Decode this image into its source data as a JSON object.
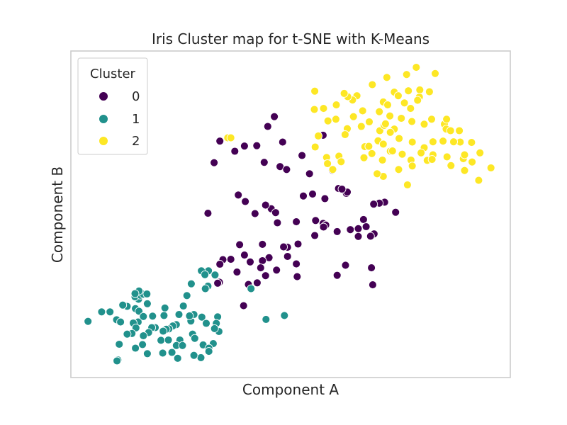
{
  "chart_data": {
    "type": "scatter",
    "title": "Iris Cluster map for t-SNE with K-Means",
    "xlabel": "Component A",
    "ylabel": "Component B",
    "xlim": [
      0,
      100
    ],
    "ylim": [
      0,
      100
    ],
    "grid": false,
    "ticks_visible": false,
    "legend": {
      "title": "Cluster",
      "placement": "top-left",
      "entries": [
        "0",
        "1",
        "2"
      ]
    },
    "series": [
      {
        "name": "0",
        "color": "#440154",
        "points": [
          [
            46.3,
            79.9
          ],
          [
            44.8,
            76.9
          ],
          [
            33.9,
            72.4
          ],
          [
            48.2,
            72.1
          ],
          [
            57.4,
            74.2
          ],
          [
            42.3,
            71.0
          ],
          [
            39.5,
            70.9
          ],
          [
            37.3,
            69.3
          ],
          [
            52.6,
            68.0
          ],
          [
            44.0,
            65.9
          ],
          [
            32.6,
            65.8
          ],
          [
            47.6,
            64.6
          ],
          [
            49.1,
            63.7
          ],
          [
            54.3,
            62.4
          ],
          [
            59.5,
            63.5
          ],
          [
            60.9,
            57.9
          ],
          [
            62.7,
            56.4
          ],
          [
            71.4,
            53.7
          ],
          [
            70.2,
            53.4
          ],
          [
            73.9,
            50.6
          ],
          [
            62.9,
            56.8
          ],
          [
            61.7,
            57.7
          ],
          [
            55.0,
            56.2
          ],
          [
            52.9,
            55.6
          ],
          [
            57.8,
            54.8
          ],
          [
            68.9,
            53.1
          ],
          [
            45.6,
            51.7
          ],
          [
            38.1,
            55.9
          ],
          [
            39.7,
            53.9
          ],
          [
            44.3,
            52.8
          ],
          [
            46.6,
            50.5
          ],
          [
            41.9,
            50.2
          ],
          [
            31.2,
            50.3
          ],
          [
            47.0,
            47.4
          ],
          [
            51.3,
            47.7
          ],
          [
            55.7,
            48.1
          ],
          [
            57.4,
            47.2
          ],
          [
            58.0,
            46.7
          ],
          [
            57.5,
            46.1
          ],
          [
            65.4,
            45.6
          ],
          [
            66.6,
            48.4
          ],
          [
            67.2,
            46.2
          ],
          [
            69.0,
            44.0
          ],
          [
            65.4,
            43.2
          ],
          [
            68.2,
            43.3
          ],
          [
            63.6,
            45.3
          ],
          [
            60.6,
            44.7
          ],
          [
            55.5,
            43.5
          ],
          [
            51.7,
            40.9
          ],
          [
            49.3,
            39.9
          ],
          [
            38.4,
            40.7
          ],
          [
            43.6,
            40.8
          ],
          [
            48.4,
            40.0
          ],
          [
            39.5,
            37.5
          ],
          [
            45.1,
            36.7
          ],
          [
            49.3,
            37.1
          ],
          [
            43.6,
            35.8
          ],
          [
            40.8,
            35.4
          ],
          [
            36.4,
            36.2
          ],
          [
            34.6,
            36.1
          ],
          [
            33.9,
            34.7
          ],
          [
            46.8,
            32.9
          ],
          [
            51.3,
            34.8
          ],
          [
            62.5,
            34.4
          ],
          [
            68.4,
            33.6
          ],
          [
            37.8,
            32.3
          ],
          [
            44.3,
            31.2
          ],
          [
            43.2,
            33.6
          ],
          [
            33.8,
            29.2
          ],
          [
            51.5,
            30.9
          ],
          [
            68.7,
            28.4
          ],
          [
            60.6,
            31.3
          ],
          [
            33.4,
            28.9
          ],
          [
            42.4,
            29.0
          ],
          [
            40.4,
            28.5
          ],
          [
            39.3,
            22.0
          ]
        ]
      },
      {
        "name": "1",
        "color": "#21918c",
        "points": [
          [
            31.3,
            32.7
          ],
          [
            29.7,
            32.7
          ],
          [
            30.5,
            31.5
          ],
          [
            32.8,
            31.4
          ],
          [
            31.2,
            28.0
          ],
          [
            30.6,
            27.2
          ],
          [
            27.4,
            28.7
          ],
          [
            26.4,
            25.1
          ],
          [
            15.3,
            25.9
          ],
          [
            15.4,
            24.0
          ],
          [
            14.6,
            24.7
          ],
          [
            15.8,
            25.2
          ],
          [
            16.5,
            25.5
          ],
          [
            15.5,
            26.5
          ],
          [
            14.6,
            25.7
          ],
          [
            17.3,
            25.6
          ],
          [
            12.8,
            21.8
          ],
          [
            11.8,
            22.2
          ],
          [
            17.4,
            22.6
          ],
          [
            14.7,
            21.1
          ],
          [
            8.9,
            20.1
          ],
          [
            7.0,
            20.1
          ],
          [
            15.5,
            20.3
          ],
          [
            27.3,
            17.3
          ],
          [
            21.4,
            21.3
          ],
          [
            25.6,
            21.9
          ],
          [
            24.6,
            19.3
          ],
          [
            28.0,
            19.3
          ],
          [
            29.8,
            18.5
          ],
          [
            33.4,
            18.6
          ],
          [
            27.0,
            18.9
          ],
          [
            21.2,
            19.0
          ],
          [
            15.3,
            17.0
          ],
          [
            18.6,
            18.8
          ],
          [
            16.5,
            18.7
          ],
          [
            10.4,
            17.7
          ],
          [
            11.3,
            17.0
          ],
          [
            14.2,
            16.7
          ],
          [
            3.9,
            17.2
          ],
          [
            24.0,
            16.2
          ],
          [
            23.2,
            15.8
          ],
          [
            19.2,
            15.3
          ],
          [
            14.8,
            15.2
          ],
          [
            22.3,
            14.9
          ],
          [
            21.7,
            14.8
          ],
          [
            18.4,
            15.3
          ],
          [
            21.0,
            14.2
          ],
          [
            17.7,
            13.8
          ],
          [
            13.9,
            13.5
          ],
          [
            12.8,
            13.3
          ],
          [
            16.5,
            12.8
          ],
          [
            22.2,
            11.5
          ],
          [
            24.8,
            11.5
          ],
          [
            20.5,
            11.4
          ],
          [
            16.3,
            10.1
          ],
          [
            14.7,
            9.0
          ],
          [
            11.0,
            10.2
          ],
          [
            27.7,
            13.3
          ],
          [
            28.2,
            12.0
          ],
          [
            33.7,
            14.1
          ],
          [
            30.8,
            16.6
          ],
          [
            33.1,
            16.6
          ],
          [
            32.7,
            15.0
          ],
          [
            24.0,
            9.8
          ],
          [
            25.4,
            9.8
          ],
          [
            30.1,
            10.0
          ],
          [
            32.4,
            10.4
          ],
          [
            31.4,
            9.0
          ],
          [
            23.0,
            7.7
          ],
          [
            20.9,
            7.5
          ],
          [
            17.4,
            7.3
          ],
          [
            24.3,
            5.9
          ],
          [
            29.6,
            6.1
          ],
          [
            10.7,
            5.4
          ],
          [
            10.5,
            5.1
          ],
          [
            31.4,
            8.0
          ],
          [
            28.0,
            6.8
          ],
          [
            44.4,
            17.8
          ],
          [
            48.6,
            19.0
          ],
          [
            41.0,
            27.2
          ]
        ]
      },
      {
        "name": "2",
        "color": "#fde725",
        "points": [
          [
            78.6,
            95.0
          ],
          [
            76.4,
            92.8
          ],
          [
            71.9,
            91.9
          ],
          [
            82.9,
            93.1
          ],
          [
            68.6,
            89.7
          ],
          [
            73.6,
            87.4
          ],
          [
            76.8,
            87.8
          ],
          [
            79.4,
            88.1
          ],
          [
            74.5,
            86.3
          ],
          [
            79.3,
            85.9
          ],
          [
            81.6,
            87.5
          ],
          [
            71.1,
            84.4
          ],
          [
            72.1,
            83.5
          ],
          [
            78.9,
            84.9
          ],
          [
            75.9,
            84.1
          ],
          [
            65.1,
            86.3
          ],
          [
            64.1,
            85.0
          ],
          [
            63.0,
            86.0
          ],
          [
            62.2,
            87.0
          ],
          [
            55.5,
            87.7
          ],
          [
            60.4,
            83.5
          ],
          [
            57.5,
            82.4
          ],
          [
            70.2,
            81.4
          ],
          [
            72.6,
            80.1
          ],
          [
            66.4,
            81.7
          ],
          [
            64.3,
            79.9
          ],
          [
            55.4,
            82.1
          ],
          [
            58.5,
            78.6
          ],
          [
            60.3,
            79.1
          ],
          [
            67.9,
            78.3
          ],
          [
            75.2,
            79.4
          ],
          [
            77.6,
            78.4
          ],
          [
            80.4,
            77.6
          ],
          [
            73.6,
            76.1
          ],
          [
            82.1,
            79.1
          ],
          [
            85.0,
            77.6
          ],
          [
            85.5,
            79.1
          ],
          [
            85.4,
            76.1
          ],
          [
            86.4,
            75.6
          ],
          [
            88.4,
            75.6
          ],
          [
            88.6,
            72.1
          ],
          [
            87.1,
            72.2
          ],
          [
            91.2,
            72.0
          ],
          [
            66.1,
            76.9
          ],
          [
            62.9,
            76.2
          ],
          [
            70.3,
            75.6
          ],
          [
            74.7,
            73.2
          ],
          [
            69.9,
            72.5
          ],
          [
            71.1,
            71.5
          ],
          [
            77.7,
            72.1
          ],
          [
            80.4,
            70.4
          ],
          [
            82.4,
            72.2
          ],
          [
            84.7,
            72.4
          ],
          [
            66.9,
            70.7
          ],
          [
            62.4,
            74.4
          ],
          [
            56.3,
            74.0
          ],
          [
            67.8,
            70.8
          ],
          [
            68.5,
            68.6
          ],
          [
            72.7,
            69.3
          ],
          [
            73.2,
            69.4
          ],
          [
            75.4,
            68.4
          ],
          [
            79.7,
            68.8
          ],
          [
            77.4,
            66.6
          ],
          [
            82.4,
            68.2
          ],
          [
            85.6,
            67.6
          ],
          [
            89.3,
            67.0
          ],
          [
            89.6,
            68.2
          ],
          [
            93.1,
            68.8
          ],
          [
            91.3,
            66.0
          ],
          [
            89.6,
            63.4
          ],
          [
            81.1,
            66.5
          ],
          [
            58.2,
            67.4
          ],
          [
            55.6,
            70.6
          ],
          [
            58.4,
            65.5
          ],
          [
            70.9,
            66.6
          ],
          [
            74.6,
            63.7
          ],
          [
            77.7,
            64.8
          ],
          [
            82.2,
            66.8
          ],
          [
            86.5,
            64.9
          ],
          [
            95.6,
            64.2
          ],
          [
            92.8,
            60.5
          ],
          [
            92.8,
            60.4
          ],
          [
            76.6,
            59.0
          ],
          [
            71.1,
            61.6
          ],
          [
            69.7,
            62.4
          ],
          [
            66.7,
            67.3
          ],
          [
            59.6,
            63.7
          ],
          [
            61.0,
            67.8
          ],
          [
            61.5,
            66.1
          ],
          [
            35.7,
            73.4
          ],
          [
            36.4,
            73.4
          ],
          [
            72.7,
            75.1
          ],
          [
            71.3,
            77.2
          ],
          [
            71.6,
            77.7
          ],
          [
            77.3,
            82.4
          ]
        ]
      }
    ]
  }
}
